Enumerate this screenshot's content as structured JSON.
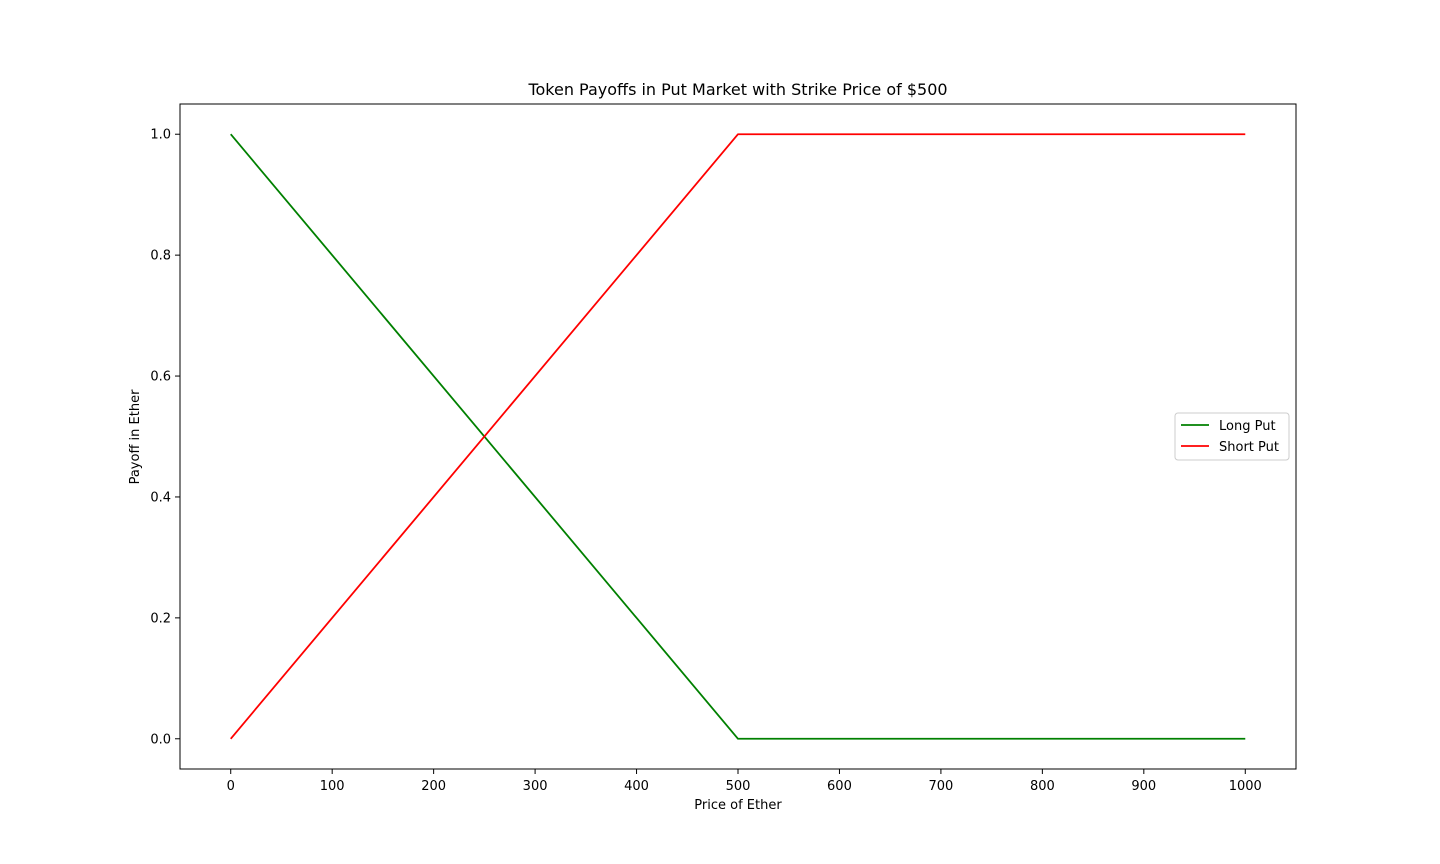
{
  "chart_data": {
    "type": "line",
    "title": "Token Payoffs in Put Market with Strike Price of $500",
    "xlabel": "Price of Ether",
    "ylabel": "Payoff in Ether",
    "xlim": [
      -50,
      1050
    ],
    "ylim": [
      -0.05,
      1.05
    ],
    "xticks": [
      0,
      100,
      200,
      300,
      400,
      500,
      600,
      700,
      800,
      900,
      1000
    ],
    "yticks": [
      0.0,
      0.2,
      0.4,
      0.6,
      0.8,
      1.0
    ],
    "xtick_labels": [
      "0",
      "100",
      "200",
      "300",
      "400",
      "500",
      "600",
      "700",
      "800",
      "900",
      "1000"
    ],
    "ytick_labels": [
      "0.0",
      "0.2",
      "0.4",
      "0.6",
      "0.8",
      "1.0"
    ],
    "grid": false,
    "legend_position": "center-right",
    "series": [
      {
        "name": "Long Put",
        "color": "#008000",
        "x": [
          0,
          500,
          1000
        ],
        "y": [
          1.0,
          0.0,
          0.0
        ]
      },
      {
        "name": "Short Put",
        "color": "#ff0000",
        "x": [
          0,
          500,
          1000
        ],
        "y": [
          0.0,
          1.0,
          1.0
        ]
      }
    ]
  }
}
